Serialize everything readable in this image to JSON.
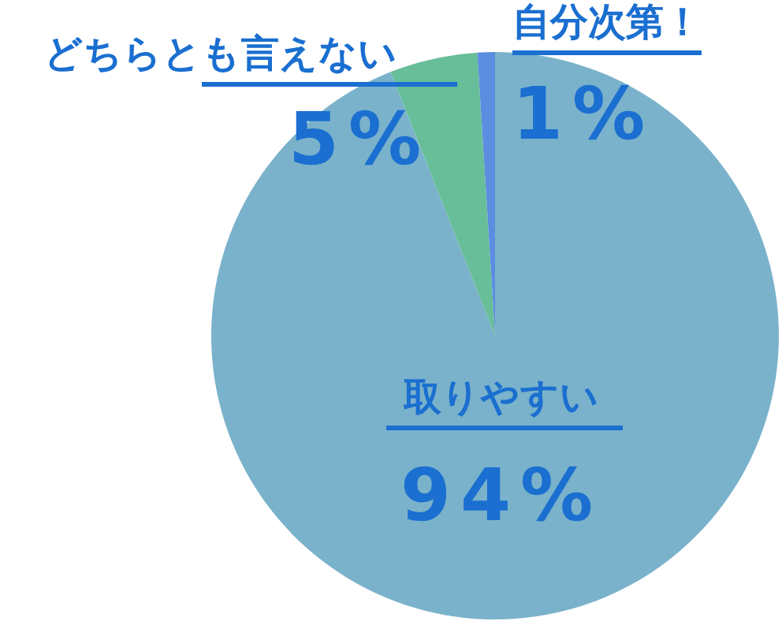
{
  "chart_data": {
    "type": "pie",
    "categories": [
      "取りやすい",
      "どちらとも言えない",
      "自分次第！"
    ],
    "values": [
      94,
      5,
      1
    ],
    "colors": [
      "#7ab2cb",
      "#67be99",
      "#5b8de0"
    ],
    "value_labels": [
      "94%",
      "5%",
      "1%"
    ]
  }
}
